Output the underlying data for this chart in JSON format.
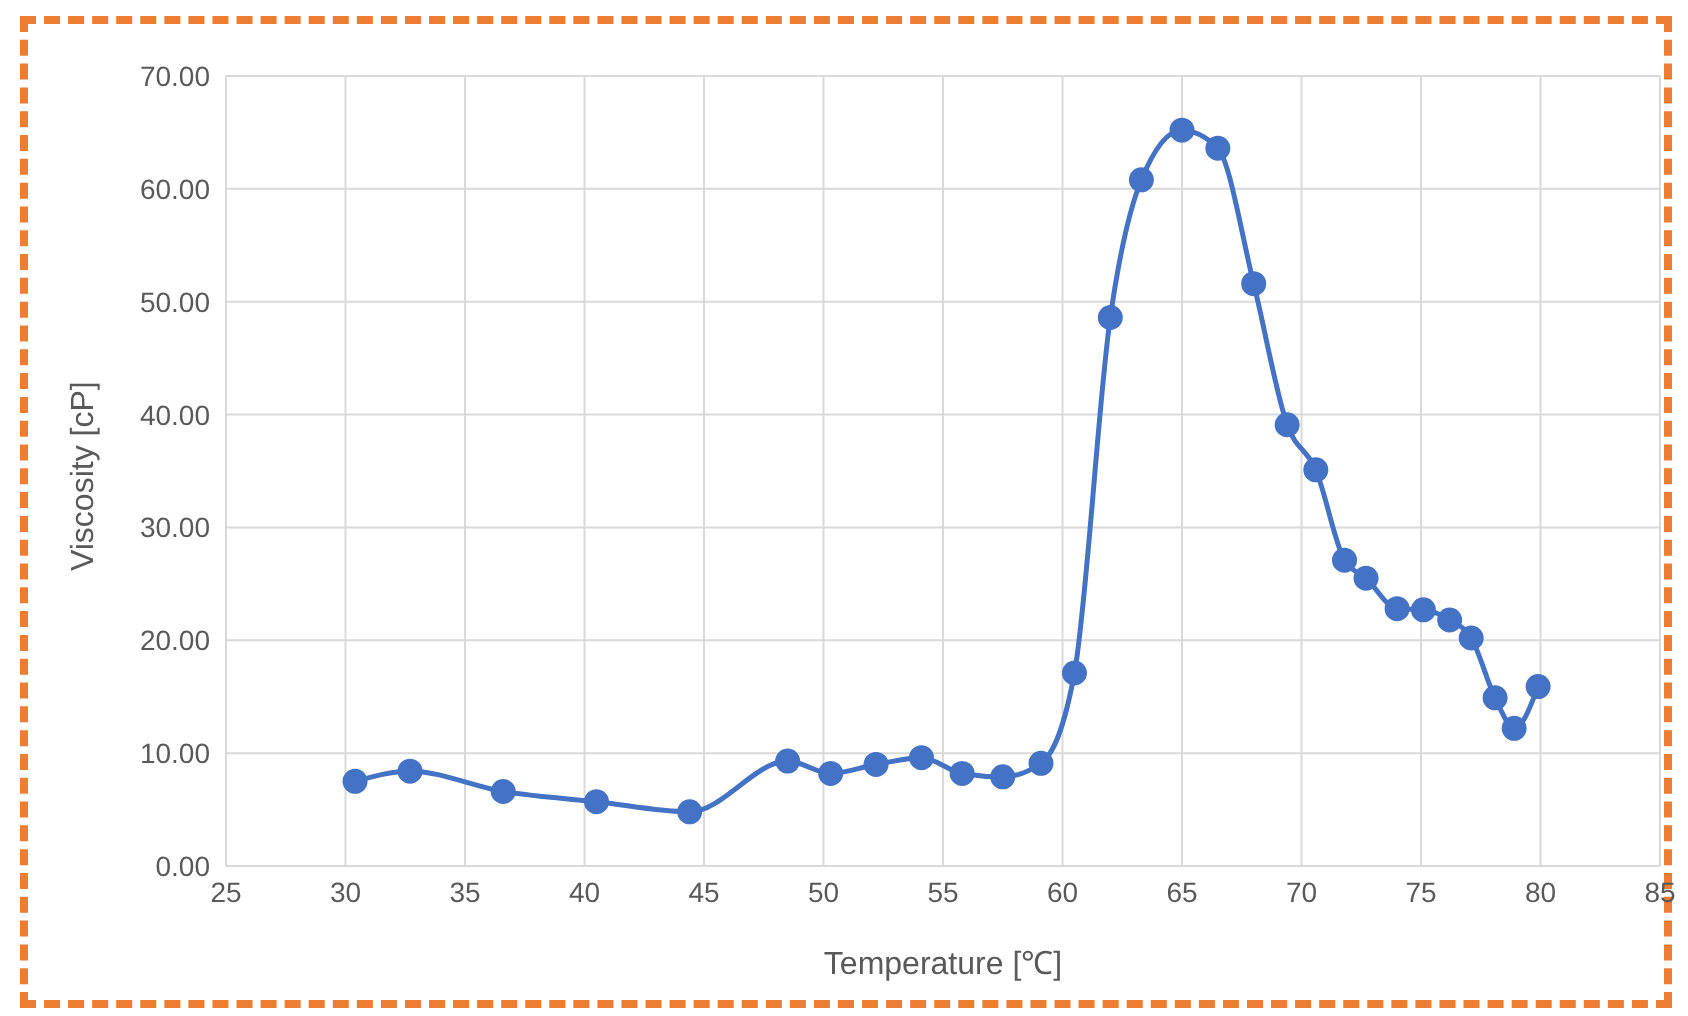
{
  "chart_data": {
    "type": "line",
    "xlabel": "Temperature [℃]",
    "ylabel": "Viscosity [cP]",
    "x": [
      30.4,
      32.7,
      36.6,
      40.5,
      44.4,
      48.5,
      50.3,
      52.2,
      54.1,
      55.8,
      57.5,
      59.1,
      60.5,
      62.0,
      63.3,
      65.0,
      66.5,
      68.0,
      69.4,
      70.6,
      71.8,
      72.7,
      74.0,
      75.1,
      76.2,
      77.1,
      78.1,
      78.9,
      79.9
    ],
    "series": [
      {
        "color": "#4472c4",
        "values": [
          7.5,
          8.4,
          6.6,
          5.7,
          4.8,
          9.3,
          8.2,
          9.0,
          9.6,
          8.2,
          7.9,
          9.1,
          17.1,
          48.6,
          60.8,
          65.2,
          63.6,
          51.6,
          39.1,
          35.1,
          27.1,
          25.5,
          22.8,
          22.7,
          21.8,
          20.2,
          14.9,
          12.2,
          15.9
        ]
      }
    ],
    "xlim": [
      25,
      85
    ],
    "xticks": [
      25,
      30,
      35,
      40,
      45,
      50,
      55,
      60,
      65,
      70,
      75,
      80,
      85
    ],
    "ylim": [
      0,
      70
    ],
    "yticks": [
      {
        "value": 0,
        "label": "0.00"
      },
      {
        "value": 10,
        "label": "10.00"
      },
      {
        "value": 20,
        "label": "20.00"
      },
      {
        "value": 30,
        "label": "30.00"
      },
      {
        "value": 40,
        "label": "40.00"
      },
      {
        "value": 50,
        "label": "50.00"
      },
      {
        "value": 60,
        "label": "60.00"
      },
      {
        "value": 70,
        "label": "70.00"
      }
    ],
    "grid": true,
    "marker": "circle",
    "line_style": "solid"
  }
}
